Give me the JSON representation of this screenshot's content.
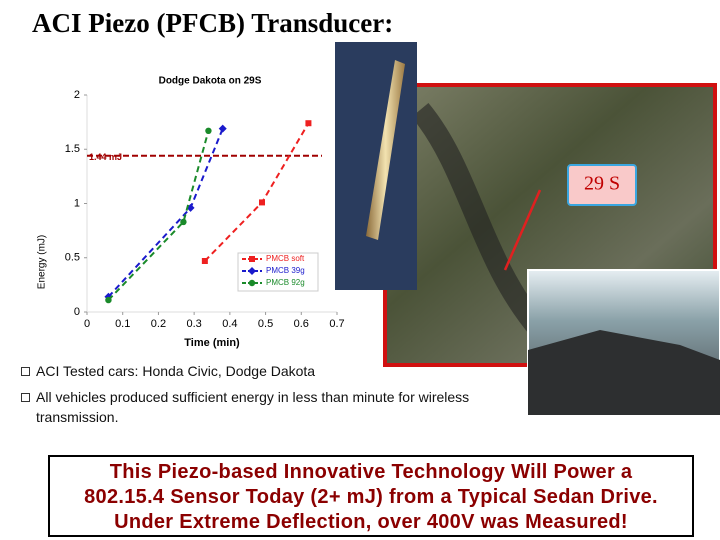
{
  "title": "ACI Piezo (PFCB) Transducer:",
  "chart_data": {
    "type": "line",
    "title": "Dodge Dakota on 29S",
    "x_label": "Time (min)",
    "y_label": "Energy (mJ)",
    "xlim": [
      0,
      0.7
    ],
    "xticks": [
      0,
      0.1,
      0.2,
      0.3,
      0.4,
      0.5,
      0.6,
      0.7
    ],
    "ylim": [
      0,
      2
    ],
    "yticks": [
      0,
      0.5,
      1,
      1.5,
      2
    ],
    "threshold": {
      "value": 1.44,
      "label": "1.44 mJ",
      "color": "#a00000"
    },
    "series": [
      {
        "name": "PMCB soft",
        "color": "#ee2020",
        "marker": "square",
        "x": [
          0.33,
          0.49,
          0.62
        ],
        "values": [
          0.47,
          1.01,
          1.74
        ]
      },
      {
        "name": "PMCB 39g",
        "color": "#1a1acc",
        "marker": "diamond",
        "x": [
          0.06,
          0.29,
          0.38
        ],
        "values": [
          0.14,
          0.96,
          1.69
        ]
      },
      {
        "name": "PMCB 92g",
        "color": "#1a8a2a",
        "marker": "circle",
        "x": [
          0.06,
          0.27,
          0.34
        ],
        "values": [
          0.11,
          0.83,
          1.67
        ]
      }
    ]
  },
  "callout": "29 S",
  "bullets": [
    "ACI Tested cars: Honda Civic, Dodge Dakota",
    "All vehicles produced sufficient energy in less than minute for wireless transmission."
  ],
  "banner": [
    "This Piezo-based Innovative Technology Will Power a",
    "802.15.4 Sensor Today (2+ mJ) from a Typical Sedan Drive.",
    "Under Extreme Deflection, over 400V was Measured!"
  ]
}
